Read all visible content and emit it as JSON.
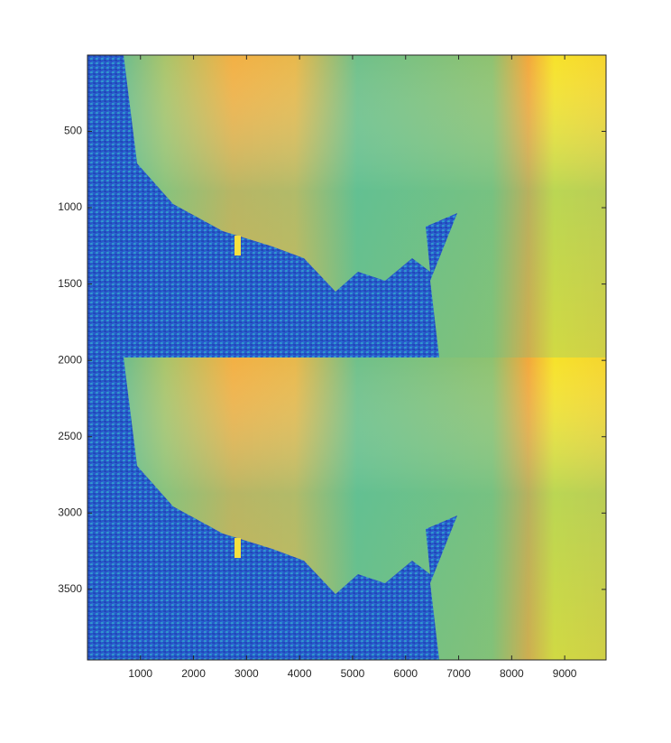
{
  "chart_data": {
    "type": "image",
    "xlim": [
      0.5,
      9780
    ],
    "ylim": [
      0.5,
      3962
    ],
    "xticks": [
      1000,
      2000,
      3000,
      4000,
      5000,
      6000,
      7000,
      8000,
      9000
    ],
    "yticks": [
      500,
      1000,
      1500,
      2000,
      2500,
      3000,
      3500
    ],
    "y_reversed": true
  }
}
